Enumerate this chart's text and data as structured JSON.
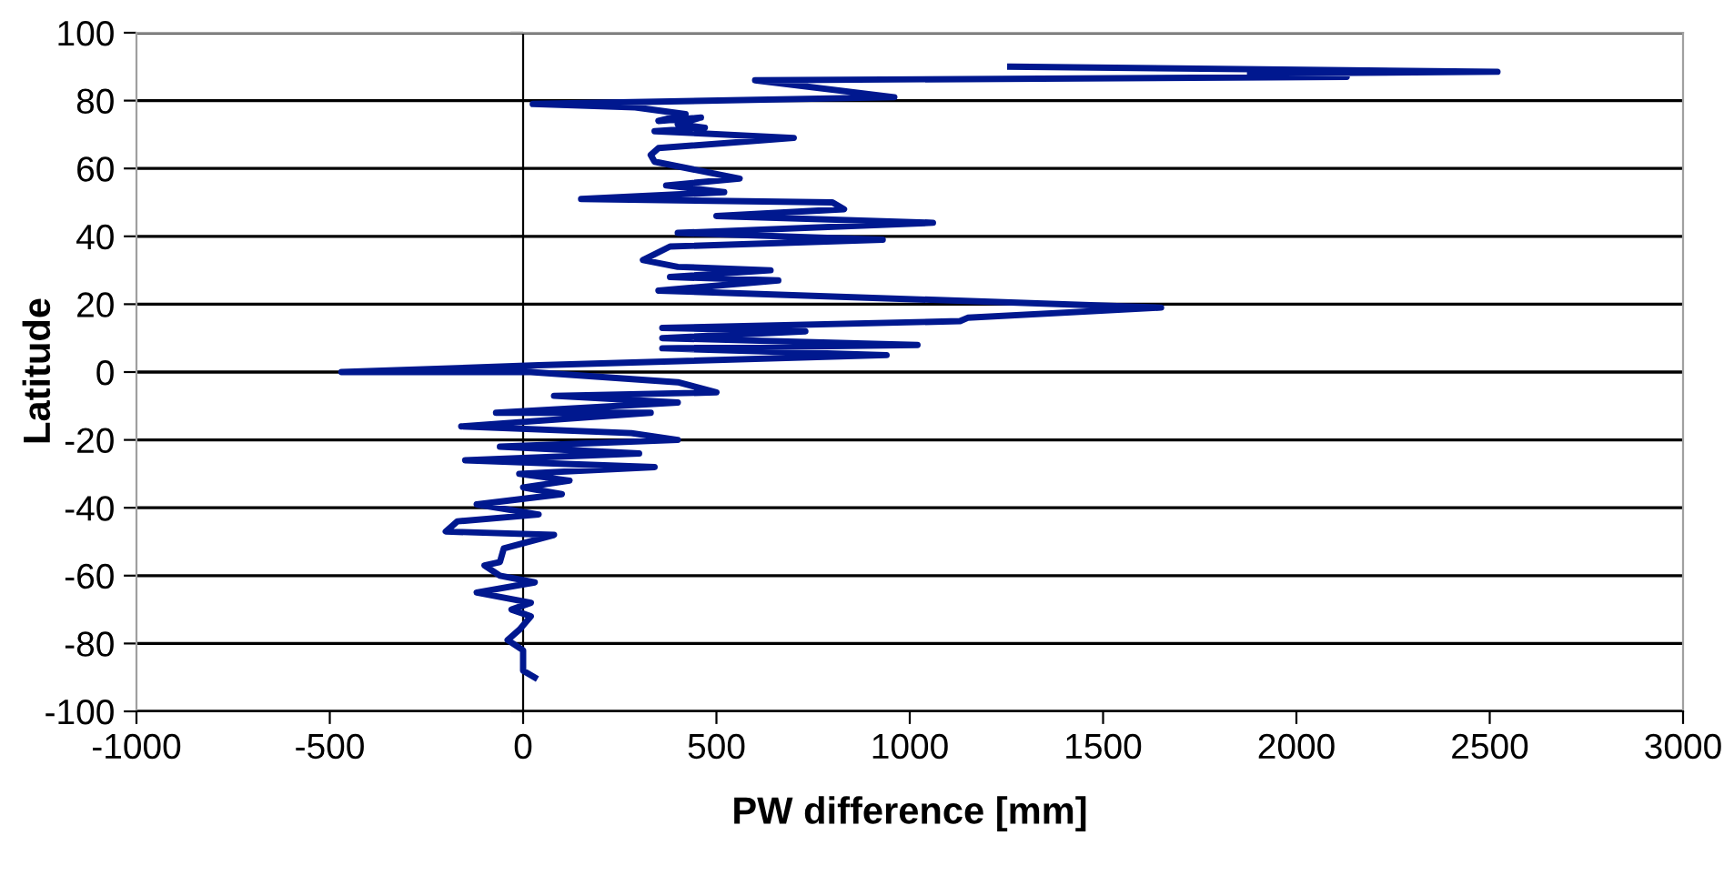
{
  "chart_data": {
    "type": "line",
    "xlabel": "PW difference [mm]",
    "ylabel": "Latitude",
    "xlim": [
      -1000,
      3000
    ],
    "xticks": [
      -1000,
      -500,
      0,
      500,
      1000,
      1500,
      2000,
      2500,
      3000
    ],
    "ylim": [
      -100,
      100
    ],
    "yticks": [
      -100,
      -80,
      -60,
      -40,
      -20,
      0,
      20,
      40,
      60,
      80,
      100
    ],
    "grid": "y",
    "legend": false,
    "marker": "none",
    "line_style": "solid",
    "series": [
      {
        "color": "#00188f",
        "x": [
          1260,
          2520,
          1880,
          2130,
          600,
          960,
          25,
          290,
          420,
          350,
          460,
          400,
          470,
          340,
          700,
          350,
          330,
          340,
          560,
          370,
          520,
          150,
          800,
          830,
          500,
          1060,
          400,
          930,
          380,
          310,
          400,
          640,
          380,
          660,
          350,
          1650,
          1150,
          1130,
          360,
          730,
          360,
          1020,
          360,
          940,
          40,
          -470,
          20,
          400,
          500,
          80,
          400,
          -70,
          330,
          -160,
          280,
          400,
          -60,
          300,
          -150,
          340,
          -10,
          120,
          0,
          100,
          -120,
          40,
          -170,
          -200,
          80,
          -50,
          -60,
          -100,
          -60,
          30,
          -120,
          20,
          -30,
          20,
          -10,
          -40,
          0,
          0,
          0,
          30
        ],
        "values": [
          90,
          88.5,
          88,
          87,
          86,
          81,
          79,
          78,
          76,
          74,
          75,
          73,
          72,
          71,
          69,
          66,
          64,
          62,
          57,
          55,
          53,
          51,
          50,
          48,
          46,
          44,
          41,
          39,
          37,
          33,
          31,
          30,
          28,
          27,
          24,
          19,
          16,
          15,
          13,
          12,
          10,
          8,
          7,
          5,
          2,
          0,
          0,
          -3,
          -6,
          -7,
          -9,
          -12,
          -12,
          -16,
          -18,
          -20,
          -22,
          -24,
          -26,
          -28,
          -30,
          -32,
          -34,
          -36,
          -39,
          -42,
          -44,
          -47,
          -48,
          -52,
          -56,
          -57,
          -60,
          -62,
          -65,
          -68,
          -70,
          -72,
          -76,
          -79,
          -82,
          -85,
          -88,
          -90
        ]
      }
    ]
  }
}
